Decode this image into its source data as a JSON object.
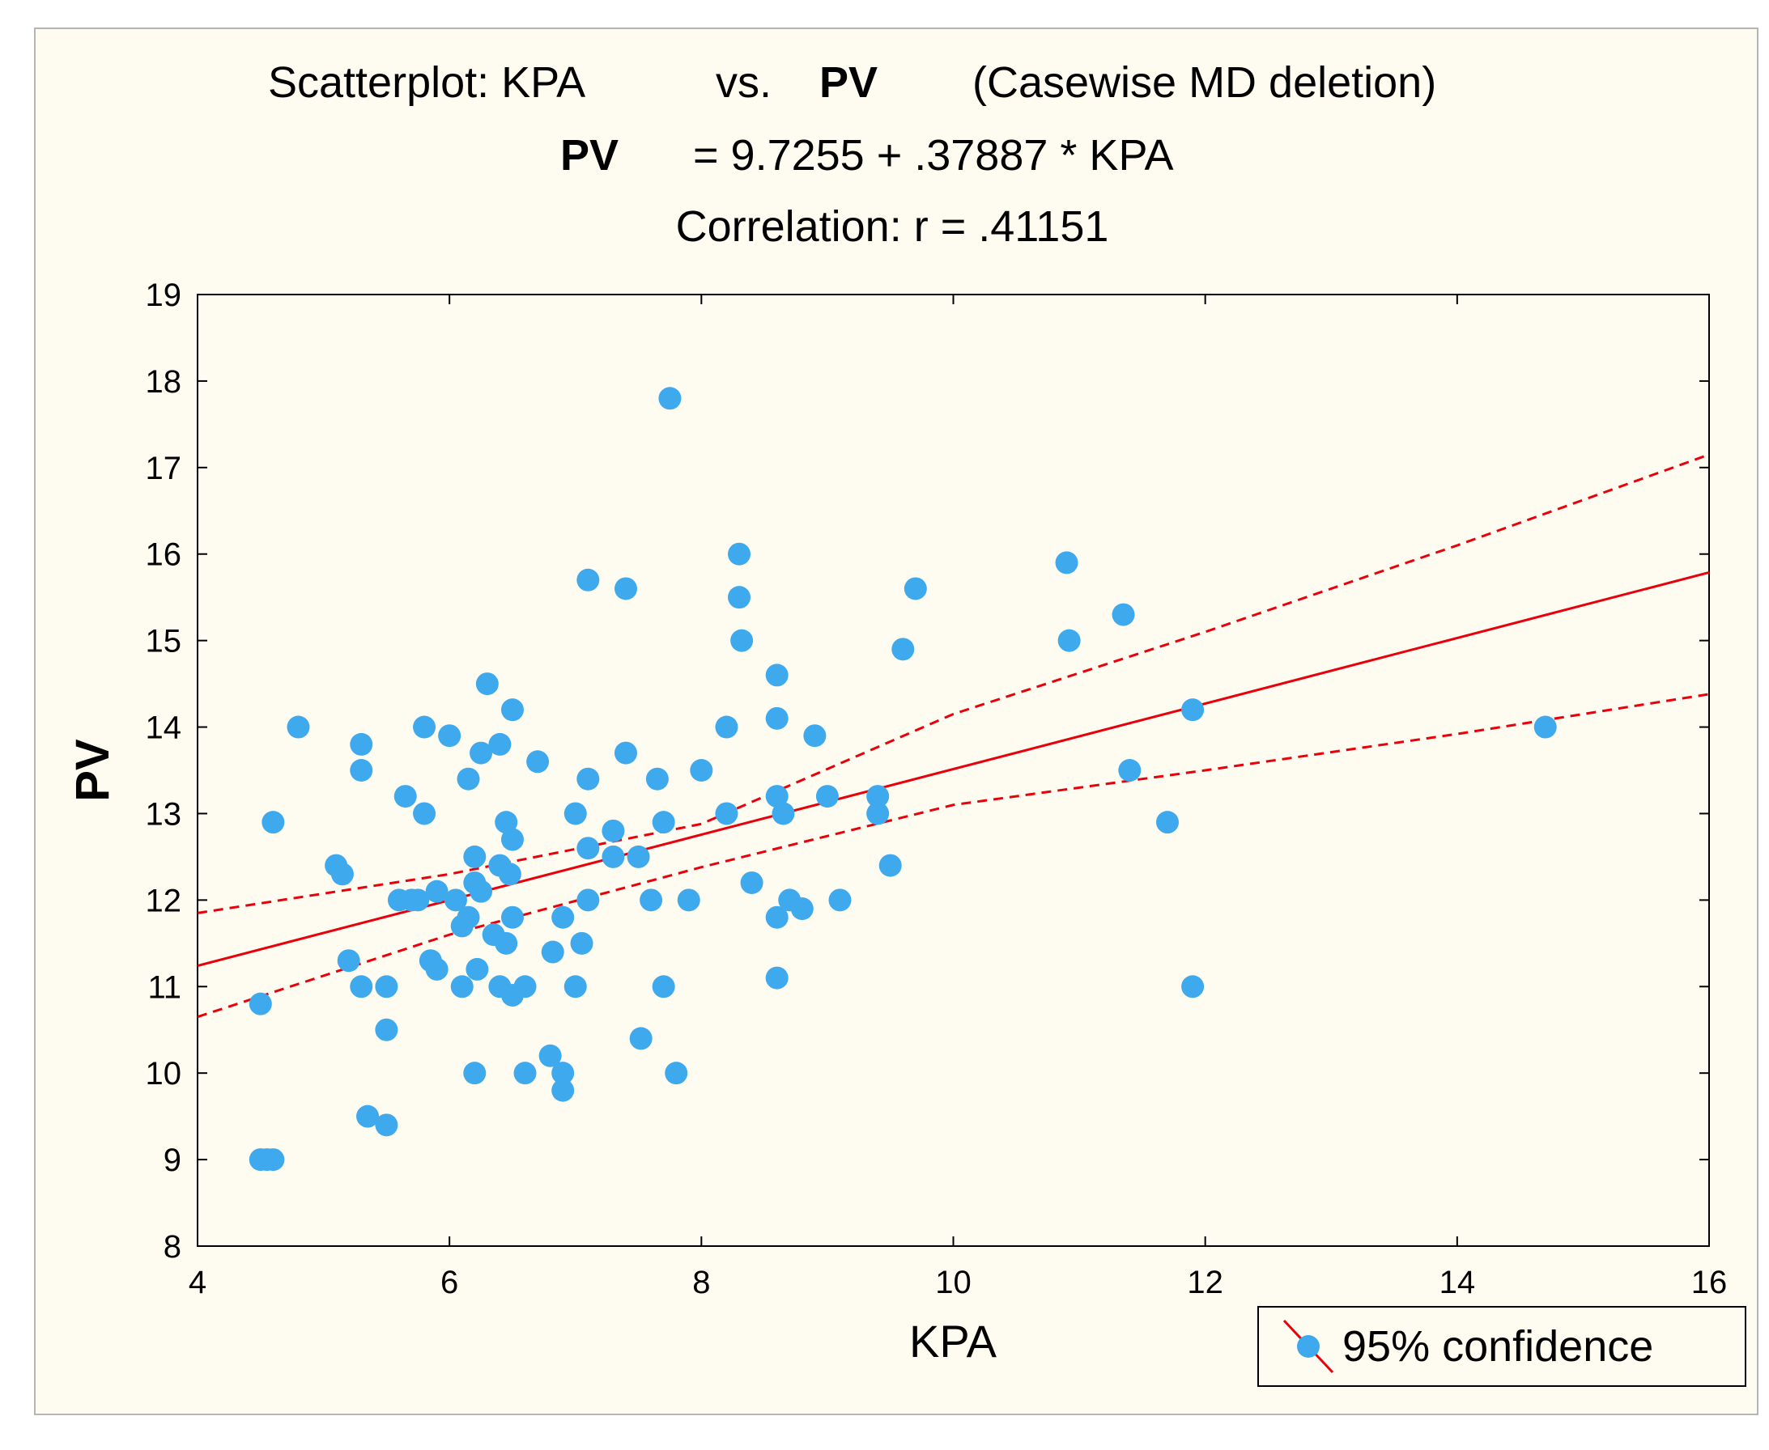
{
  "chart_data": {
    "type": "scatter",
    "title_parts": {
      "prefix": "Scatterplot: KPA",
      "vs": "vs.",
      "yvar": "PV",
      "suffix": "(Casewise MD deletion)"
    },
    "equation": {
      "lhs": "PV",
      "rhs": "= 9.7255 + .37887 * KPA"
    },
    "correlation": "Correlation: r = .41151",
    "xlabel": "KPA",
    "ylabel": "PV",
    "xlim": [
      4,
      16
    ],
    "ylim": [
      8,
      19
    ],
    "xticks": [
      4,
      6,
      8,
      10,
      12,
      14,
      16
    ],
    "yticks": [
      8,
      9,
      10,
      11,
      12,
      13,
      14,
      15,
      16,
      17,
      18,
      19
    ],
    "regression": {
      "intercept": 9.7255,
      "slope": 0.37887
    },
    "confidence_band": {
      "upper": [
        [
          4,
          11.85
        ],
        [
          6,
          12.3
        ],
        [
          8,
          12.88
        ],
        [
          10,
          14.15
        ],
        [
          12,
          15.1
        ],
        [
          14,
          16.1
        ],
        [
          16,
          17.15
        ]
      ],
      "lower": [
        [
          4,
          10.65
        ],
        [
          6,
          11.6
        ],
        [
          8,
          12.38
        ],
        [
          10,
          13.1
        ],
        [
          12,
          13.5
        ],
        [
          14,
          13.92
        ],
        [
          16,
          14.38
        ]
      ]
    },
    "legend": {
      "label": "95% confidence",
      "position": "bottom-right"
    },
    "colors": {
      "points": "#3fa9ee",
      "line": "#e8000b",
      "background": "#fefcf0"
    },
    "points": [
      [
        4.5,
        9.0
      ],
      [
        4.55,
        9.0
      ],
      [
        4.6,
        9.0
      ],
      [
        4.5,
        10.8
      ],
      [
        4.6,
        12.9
      ],
      [
        4.8,
        14.0
      ],
      [
        5.1,
        12.4
      ],
      [
        5.15,
        12.3
      ],
      [
        5.2,
        11.3
      ],
      [
        5.3,
        11.0
      ],
      [
        5.3,
        13.5
      ],
      [
        5.3,
        13.8
      ],
      [
        5.35,
        9.5
      ],
      [
        5.5,
        9.4
      ],
      [
        5.5,
        10.5
      ],
      [
        5.5,
        11.0
      ],
      [
        5.6,
        12.0
      ],
      [
        5.65,
        13.2
      ],
      [
        5.7,
        12.0
      ],
      [
        5.75,
        12.0
      ],
      [
        5.8,
        14.0
      ],
      [
        5.8,
        13.0
      ],
      [
        5.85,
        11.3
      ],
      [
        5.9,
        11.2
      ],
      [
        5.9,
        12.1
      ],
      [
        6.0,
        13.9
      ],
      [
        6.05,
        12.0
      ],
      [
        6.1,
        11.7
      ],
      [
        6.1,
        11.0
      ],
      [
        6.15,
        11.8
      ],
      [
        6.15,
        13.4
      ],
      [
        6.2,
        12.5
      ],
      [
        6.2,
        12.2
      ],
      [
        6.2,
        10.0
      ],
      [
        6.22,
        11.2
      ],
      [
        6.25,
        12.1
      ],
      [
        6.25,
        13.7
      ],
      [
        6.3,
        14.5
      ],
      [
        6.35,
        11.6
      ],
      [
        6.4,
        11.0
      ],
      [
        6.4,
        12.4
      ],
      [
        6.4,
        13.8
      ],
      [
        6.45,
        12.9
      ],
      [
        6.45,
        11.5
      ],
      [
        6.48,
        12.3
      ],
      [
        6.5,
        10.9
      ],
      [
        6.5,
        11.8
      ],
      [
        6.5,
        12.7
      ],
      [
        6.5,
        14.2
      ],
      [
        6.6,
        10.0
      ],
      [
        6.6,
        11.0
      ],
      [
        6.7,
        13.6
      ],
      [
        6.8,
        10.2
      ],
      [
        6.82,
        11.4
      ],
      [
        6.9,
        10.0
      ],
      [
        6.9,
        9.8
      ],
      [
        6.9,
        11.8
      ],
      [
        7.0,
        13.0
      ],
      [
        7.0,
        11.0
      ],
      [
        7.05,
        11.5
      ],
      [
        7.1,
        12.6
      ],
      [
        7.1,
        12.0
      ],
      [
        7.1,
        13.4
      ],
      [
        7.1,
        15.7
      ],
      [
        7.3,
        12.5
      ],
      [
        7.3,
        12.8
      ],
      [
        7.4,
        13.7
      ],
      [
        7.4,
        15.6
      ],
      [
        7.5,
        12.5
      ],
      [
        7.52,
        10.4
      ],
      [
        7.6,
        12.0
      ],
      [
        7.65,
        13.4
      ],
      [
        7.7,
        12.9
      ],
      [
        7.7,
        11.0
      ],
      [
        7.75,
        17.8
      ],
      [
        7.8,
        10.0
      ],
      [
        7.9,
        12.0
      ],
      [
        8.0,
        13.5
      ],
      [
        8.2,
        13.0
      ],
      [
        8.2,
        14.0
      ],
      [
        8.3,
        16.0
      ],
      [
        8.3,
        15.5
      ],
      [
        8.32,
        15.0
      ],
      [
        8.4,
        12.2
      ],
      [
        8.6,
        14.6
      ],
      [
        8.6,
        14.1
      ],
      [
        8.6,
        13.2
      ],
      [
        8.6,
        11.8
      ],
      [
        8.6,
        11.1
      ],
      [
        8.65,
        13.0
      ],
      [
        8.7,
        12.0
      ],
      [
        8.8,
        11.9
      ],
      [
        8.9,
        13.9
      ],
      [
        9.0,
        13.2
      ],
      [
        9.1,
        12.0
      ],
      [
        9.4,
        13.2
      ],
      [
        9.4,
        13.0
      ],
      [
        9.5,
        12.4
      ],
      [
        9.6,
        14.9
      ],
      [
        9.7,
        15.6
      ],
      [
        10.9,
        15.9
      ],
      [
        10.92,
        15.0
      ],
      [
        11.35,
        15.3
      ],
      [
        11.4,
        13.5
      ],
      [
        11.7,
        12.9
      ],
      [
        11.9,
        14.2
      ],
      [
        11.9,
        11.0
      ],
      [
        14.7,
        14.0
      ]
    ]
  }
}
